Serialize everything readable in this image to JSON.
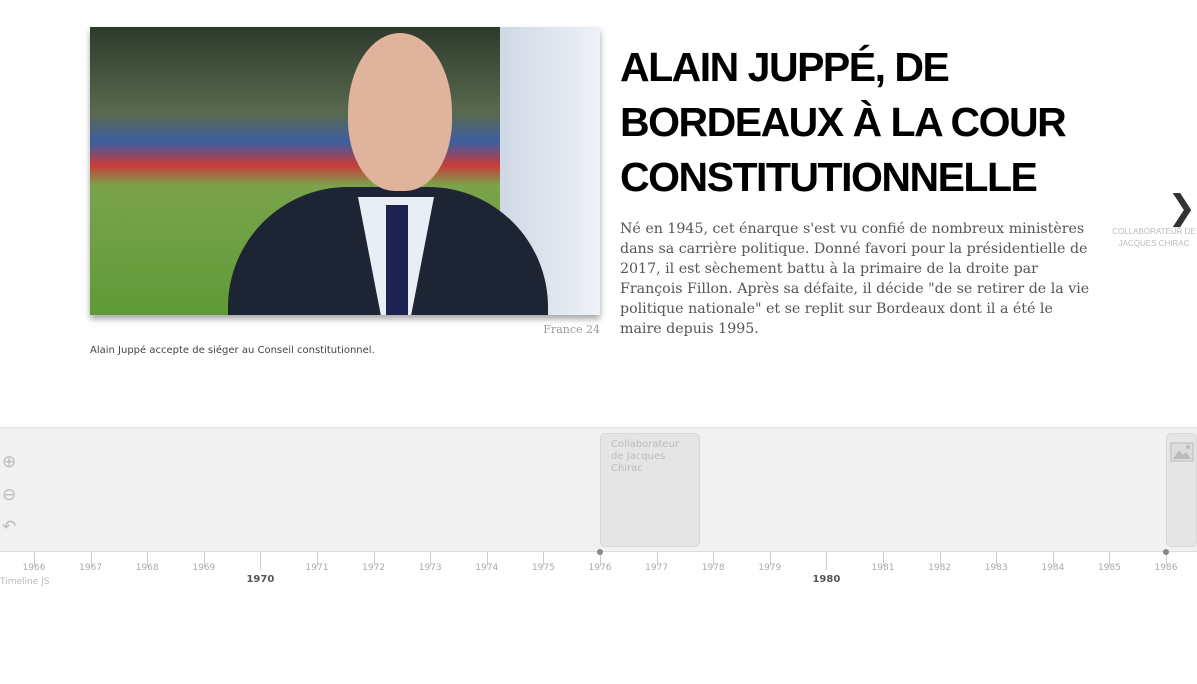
{
  "slide": {
    "title": "ALAIN JUPPÉ, DE BORDEAUX À LA COUR CONSTITUTIONNELLE",
    "text": "Né en 1945, cet énarque s'est vu confié de nombreux ministères dans sa carrière politique. Donné favori pour la présidentielle de 2017, il est sèchement battu à la primaire de la droite par François Fillon. Après sa défaite, il décide \"de se retirer de la vie politique nationale\" et se replit sur Bordeaux dont il a été le maire depuis 1995.",
    "credit": "France 24",
    "caption": "Alain Juppé accepte de siéger au Conseil constitutionnel.",
    "next_label": "COLLABORATEUR DE JACQUES CHIRAC",
    "next_icon": "chevron-right-icon"
  },
  "nav": {
    "tools": [
      "zoom-in-icon",
      "zoom-out-icon",
      "back-to-start-icon"
    ],
    "markers": [
      {
        "label": "Collaborateur de Jacques Chirac",
        "year": 1976
      },
      {
        "label": "",
        "year": 1986,
        "icon": "image-icon"
      }
    ]
  },
  "axis": {
    "minor": [
      "1966",
      "1967",
      "1968",
      "1969",
      "1971",
      "1972",
      "1973",
      "1974",
      "1975",
      "1976",
      "1977",
      "1978",
      "1979",
      "1981",
      "1982",
      "1983",
      "1984",
      "1985",
      "1986"
    ],
    "major": [
      "1970",
      "1980"
    ]
  },
  "brand": "Timeline JS"
}
